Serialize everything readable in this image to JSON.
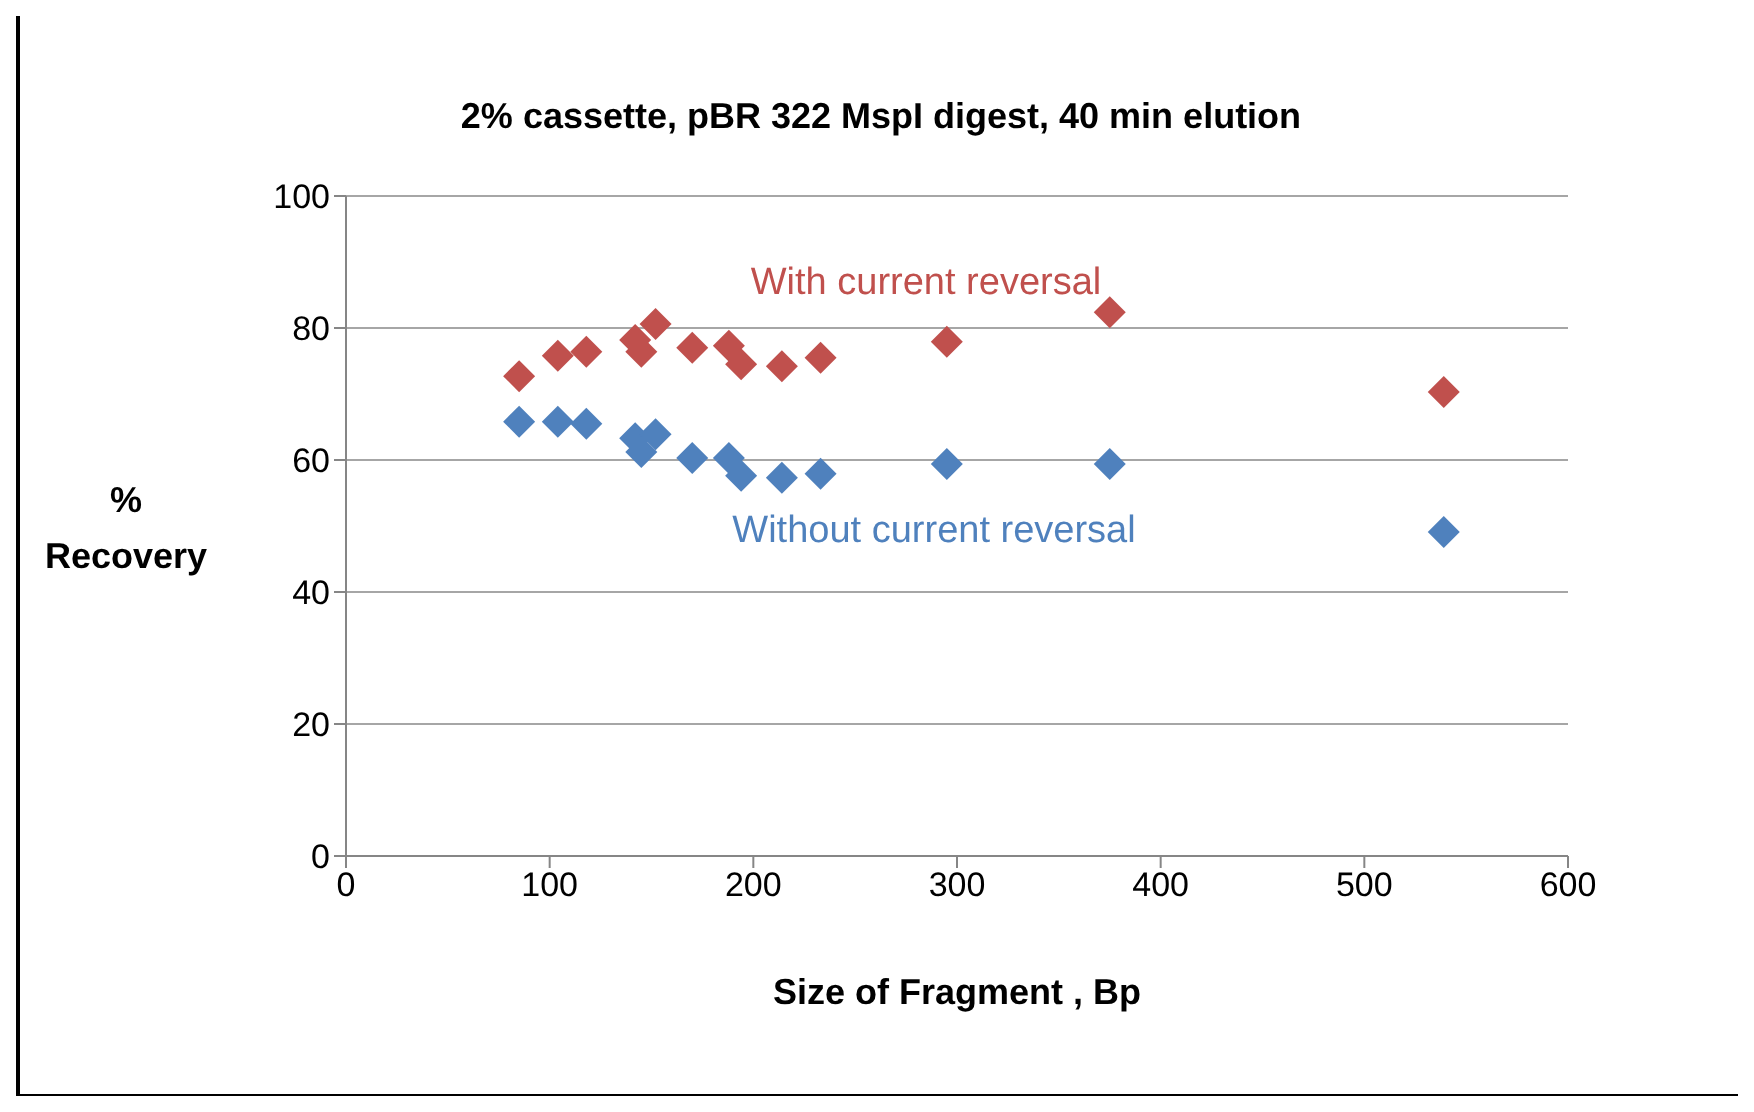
{
  "chart_data": {
    "type": "scatter",
    "title": "2% cassette, pBR 322 MspI digest, 40 min elution",
    "xlabel": "Size of Fragment , Bp",
    "ylabel": "% Recovery",
    "xlim": [
      0,
      600
    ],
    "xticks": [
      0,
      100,
      200,
      300,
      400,
      500,
      600
    ],
    "ylim": [
      0,
      100
    ],
    "yticks": [
      0,
      20,
      40,
      60,
      80,
      100
    ],
    "grid": "y",
    "marker": "diamond",
    "x": [
      85,
      104,
      118,
      142,
      145,
      152,
      170,
      188,
      194,
      214,
      233,
      295,
      375,
      539
    ],
    "series": [
      {
        "name": "With current reversal",
        "color": "#c0504d",
        "values": [
          72.7,
          75.8,
          76.4,
          78.2,
          76.4,
          80.6,
          77.0,
          77.3,
          74.5,
          74.2,
          75.5,
          77.9,
          82.4,
          70.3
        ]
      },
      {
        "name": "Without current reversal",
        "color": "#4f81bd",
        "values": [
          65.8,
          65.8,
          65.5,
          63.3,
          61.2,
          63.9,
          60.3,
          60.3,
          57.6,
          57.3,
          57.9,
          59.4,
          59.4,
          49.1
        ]
      }
    ]
  }
}
